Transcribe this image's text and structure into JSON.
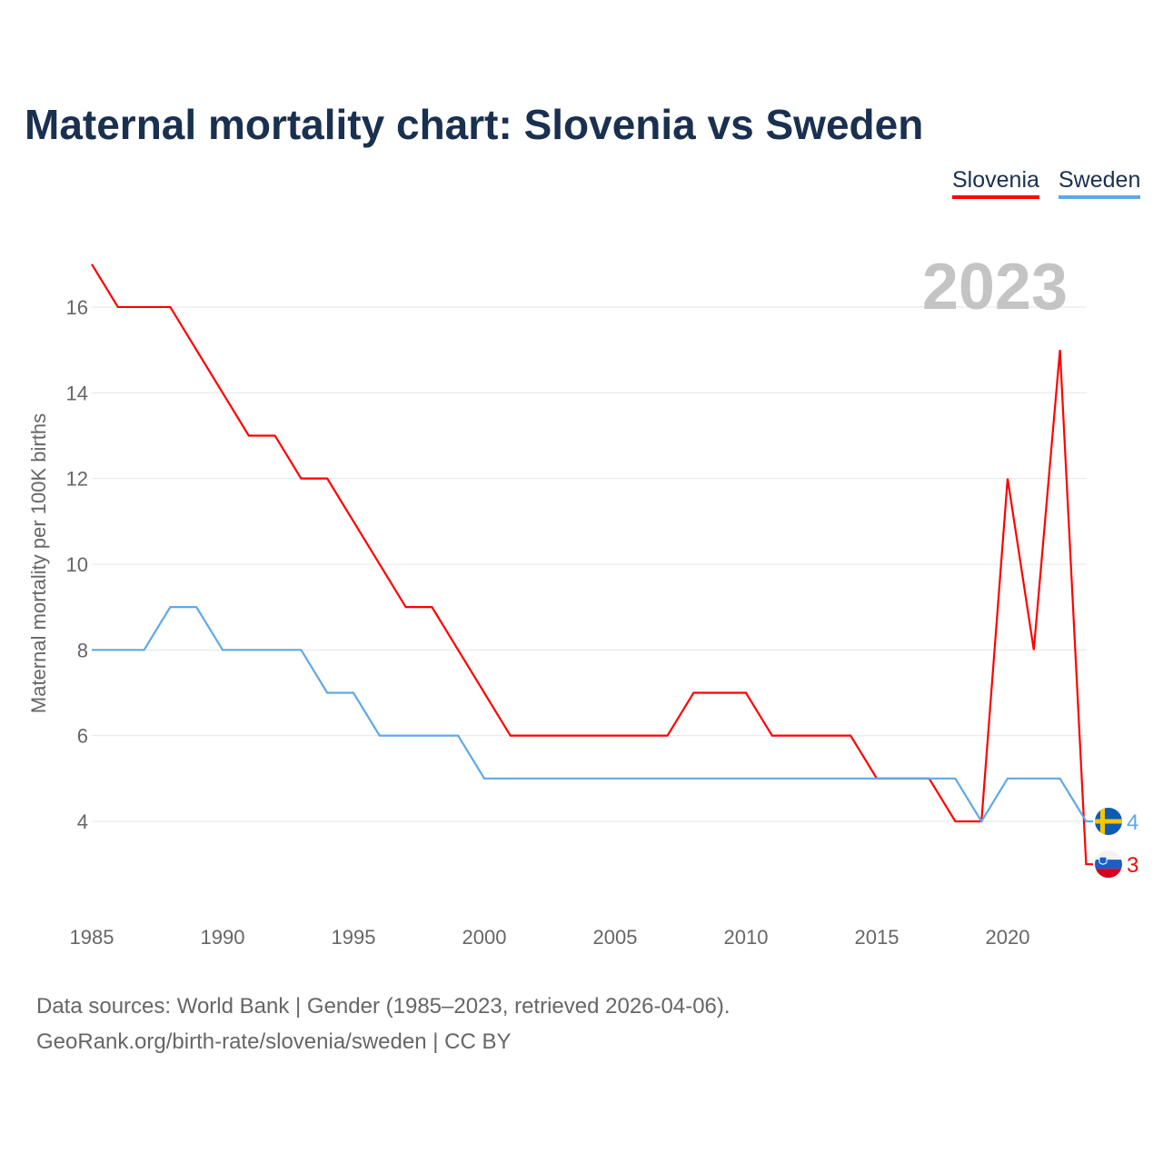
{
  "title": "Maternal mortality chart: Slovenia vs Sweden",
  "footer": {
    "line1": "Data sources: World Bank | Gender (1985–2023, retrieved 2026-04-06).",
    "line2": "GeoRank.org/birth-rate/slovenia/sweden | CC BY"
  },
  "chart_data": {
    "type": "line",
    "title": "Maternal mortality chart: Slovenia vs Sweden",
    "ylabel": "Maternal mortality per 100K births",
    "xlabel": "",
    "year_label": "2023",
    "x": [
      1985,
      1986,
      1987,
      1988,
      1989,
      1990,
      1991,
      1992,
      1993,
      1994,
      1995,
      1996,
      1997,
      1998,
      1999,
      2000,
      2001,
      2002,
      2003,
      2004,
      2005,
      2006,
      2007,
      2008,
      2009,
      2010,
      2011,
      2012,
      2013,
      2014,
      2015,
      2016,
      2017,
      2018,
      2019,
      2020,
      2021,
      2022,
      2023
    ],
    "series": [
      {
        "name": "Slovenia",
        "color": "#ff0000",
        "end_label": "3",
        "values": [
          17,
          16,
          16,
          16,
          15,
          14,
          13,
          13,
          12,
          12,
          11,
          10,
          9,
          9,
          8,
          7,
          6,
          6,
          6,
          6,
          6,
          6,
          6,
          7,
          7,
          7,
          6,
          6,
          6,
          6,
          5,
          5,
          5,
          4,
          4,
          12,
          8,
          15,
          3
        ]
      },
      {
        "name": "Sweden",
        "color": "#5fa8e8",
        "end_label": "4",
        "values": [
          8,
          8,
          8,
          9,
          9,
          8,
          8,
          8,
          8,
          7,
          7,
          6,
          6,
          6,
          6,
          5,
          5,
          5,
          5,
          5,
          5,
          5,
          5,
          5,
          5,
          5,
          5,
          5,
          5,
          5,
          5,
          5,
          5,
          5,
          4,
          5,
          5,
          5,
          4
        ]
      }
    ],
    "xticks": [
      "1985",
      "1990",
      "1995",
      "2000",
      "2005",
      "2010",
      "2015",
      "2020"
    ],
    "yticks": [
      "4",
      "6",
      "8",
      "10",
      "12",
      "14",
      "16"
    ],
    "xlim": [
      1985,
      2023
    ],
    "ylim": [
      2,
      17
    ],
    "grid": true,
    "legend": "top-right"
  }
}
